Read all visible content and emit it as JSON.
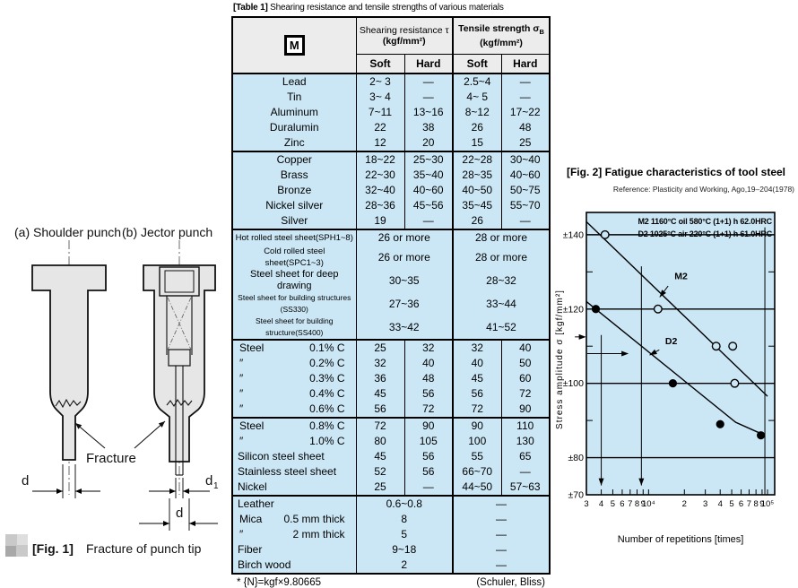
{
  "colors": {
    "table_cell_bg": "#cbe7f5",
    "table_header_bg": "#ececec",
    "chart_bg": "#cbe7f5",
    "ink": "#000000"
  },
  "fig1": {
    "label_a": "(a) Shoulder punch",
    "label_b": "(b) Jector punch",
    "fracture": "Fracture",
    "dim_d_left": "d",
    "dim_d1_base": "d",
    "dim_d1_sub": "1",
    "dim_d_right": "d",
    "caption_tag": "[Fig. 1]",
    "caption_text": "Fracture of punch tip"
  },
  "table": {
    "title_tag": "[Table 1]",
    "title_text": "Shearing resistance and tensile strengths of various materials",
    "header": {
      "material_icon": "M",
      "shear_label": "Shearing resistance τ",
      "shear_unit": "(kgf/mm²)",
      "tensile_label": "Tensile strength σ",
      "tensile_sub": "B",
      "tensile_unit": "(kgf/mm²)",
      "soft": "Soft",
      "hard": "Hard"
    },
    "groups": [
      {
        "align": "center",
        "merged": false,
        "rows": [
          {
            "name": "Lead",
            "values": [
              "2~ 3",
              "—",
              "2.5~4",
              "—"
            ]
          },
          {
            "name": "Tin",
            "values": [
              "3~ 4",
              "—",
              "4~ 5",
              "—"
            ]
          },
          {
            "name": "Aluminum",
            "values": [
              "7~11",
              "13~16",
              "8~12",
              "17~22"
            ]
          },
          {
            "name": "Duralumin",
            "values": [
              "22",
              "38",
              "26",
              "48"
            ]
          },
          {
            "name": "Zinc",
            "values": [
              "12",
              "20",
              "15",
              "25"
            ]
          }
        ]
      },
      {
        "align": "center",
        "merged": false,
        "rows": [
          {
            "name": "Copper",
            "values": [
              "18~22",
              "25~30",
              "22~28",
              "30~40"
            ]
          },
          {
            "name": "Brass",
            "values": [
              "22~30",
              "35~40",
              "28~35",
              "40~60"
            ]
          },
          {
            "name": "Bronze",
            "values": [
              "32~40",
              "40~60",
              "40~50",
              "50~75"
            ]
          },
          {
            "name": "Nickel silver",
            "values": [
              "28~36",
              "45~56",
              "35~45",
              "55~70"
            ]
          },
          {
            "name": "Silver",
            "values": [
              "19",
              "—",
              "26",
              "—"
            ]
          }
        ]
      },
      {
        "align": "center",
        "merged": true,
        "rows": [
          {
            "name": "Hot rolled steel sheet(SPH1~8)",
            "fs": 9.5,
            "values": [
              "26 or more",
              "28 or more"
            ]
          },
          {
            "name": "Cold rolled steel sheet(SPC1~3)",
            "fs": 9.5,
            "values": [
              "26 or more",
              "28 or more"
            ]
          },
          {
            "name": "Steel sheet for deep drawing",
            "fs": 11,
            "values": [
              "30~35",
              "28~32"
            ]
          },
          {
            "name": "Steel sheet for building structures (SS330)",
            "fs": 8.5,
            "values": [
              "27~36",
              "33~44"
            ]
          },
          {
            "name": "Steel sheet for building structure(SS400)",
            "fs": 8.5,
            "values": [
              "33~42",
              "41~52"
            ]
          }
        ]
      },
      {
        "align": "left",
        "merged": false,
        "rows": [
          {
            "name": "Steel",
            "sub": "0.1% C",
            "values": [
              "25",
              "32",
              "32",
              "40"
            ]
          },
          {
            "name": "″",
            "sub": "0.2% C",
            "values": [
              "32",
              "40",
              "40",
              "50"
            ]
          },
          {
            "name": "″",
            "sub": "0.3% C",
            "values": [
              "36",
              "48",
              "45",
              "60"
            ]
          },
          {
            "name": "″",
            "sub": "0.4% C",
            "values": [
              "45",
              "56",
              "56",
              "72"
            ]
          },
          {
            "name": "″",
            "sub": "0.6% C",
            "values": [
              "56",
              "72",
              "72",
              "90"
            ]
          }
        ]
      },
      {
        "align": "left",
        "merged": false,
        "rows": [
          {
            "name": "Steel",
            "sub": "0.8% C",
            "values": [
              "72",
              "90",
              "90",
              "110"
            ]
          },
          {
            "name": "″",
            "sub": "1.0% C",
            "values": [
              "80",
              "105",
              "100",
              "130"
            ]
          },
          {
            "name": "Silicon steel sheet",
            "values": [
              "45",
              "56",
              "55",
              "65"
            ]
          },
          {
            "name": "Stainless steel sheet",
            "values": [
              "52",
              "56",
              "66~70",
              "—"
            ]
          },
          {
            "name": "Nickel",
            "values": [
              "25",
              "—",
              "44~50",
              "57~63"
            ]
          }
        ]
      },
      {
        "align": "left",
        "merged": true,
        "rows": [
          {
            "name": "Leather",
            "values": [
              "0.6~0.8",
              "—"
            ]
          },
          {
            "name": "Mica",
            "sub": "0.5 mm thick",
            "values": [
              "8",
              "—"
            ]
          },
          {
            "name": "″",
            "sub": "2 mm thick",
            "values": [
              "5",
              "—"
            ]
          },
          {
            "name": "Fiber",
            "values": [
              "9~18",
              "—"
            ]
          },
          {
            "name": "Birch wood",
            "values": [
              "2",
              "—"
            ]
          }
        ]
      }
    ],
    "note": "* {N}=kgf×9.80665",
    "source": "(Schuler, Bliss)"
  },
  "chart_data": {
    "type": "scatter",
    "title_tag": "[Fig. 2]",
    "title_text": "Fatigue characteristics of tool steel",
    "reference": "Reference: Plasticity and Working, Ago,19–204(1978)",
    "xlabel": "Number of repetitions [times]",
    "ylabel": "Stress amplitude σ [kgf/mm²]",
    "x_scale": "log",
    "xlim": [
      3000,
      112000
    ],
    "ylim": [
      70,
      146
    ],
    "grid": "horizontal-major",
    "legend_position": "top-right-inside",
    "legend": [
      "M2 1160°C oil 580°C (1+1) h 62.0HRC",
      "D2 1025°C air 220°C (1+1) h 61.0HRC"
    ],
    "x_ticks": [
      {
        "v": 3000,
        "l": "3"
      },
      {
        "v": 4000,
        "l": "4"
      },
      {
        "v": 5000,
        "l": "5"
      },
      {
        "v": 6000,
        "l": "6"
      },
      {
        "v": 7000,
        "l": "7"
      },
      {
        "v": 8000,
        "l": "8"
      },
      {
        "v": 9000,
        "l": "9"
      },
      {
        "v": 10000,
        "l": "10⁴"
      },
      {
        "v": 20000,
        "l": "2"
      },
      {
        "v": 30000,
        "l": "3"
      },
      {
        "v": 40000,
        "l": "4"
      },
      {
        "v": 50000,
        "l": "5"
      },
      {
        "v": 60000,
        "l": "6"
      },
      {
        "v": 70000,
        "l": "7"
      },
      {
        "v": 80000,
        "l": "8"
      },
      {
        "v": 90000,
        "l": "9"
      },
      {
        "v": 100000,
        "l": "10⁵"
      }
    ],
    "y_major": [
      {
        "v": 140,
        "label": "±140"
      },
      {
        "v": 120,
        "label": "±120"
      },
      {
        "v": 100,
        "label": "±100"
      },
      {
        "v": 80,
        "label": "±80"
      },
      {
        "v": 70,
        "label": "±70"
      }
    ],
    "y_minor": [
      130,
      110,
      90
    ],
    "series": [
      {
        "name": "M2",
        "marker": "open",
        "points": [
          [
            4300,
            140
          ],
          [
            12000,
            120
          ],
          [
            37000,
            110
          ],
          [
            51000,
            110
          ],
          [
            53000,
            100
          ]
        ],
        "line": [
          [
            3000,
            143.5
          ],
          [
            100000,
            96.5
          ]
        ],
        "label_pos": [
          16500,
          128
        ],
        "label_arrow": [
          [
            14600,
            126.2
          ],
          [
            12400,
            123.2
          ]
        ]
      },
      {
        "name": "D2",
        "marker": "filled",
        "points": [
          [
            3600,
            120
          ],
          [
            16000,
            100
          ],
          [
            40000,
            89
          ],
          [
            88000,
            86
          ]
        ],
        "line": [
          [
            3000,
            122
          ],
          [
            54000,
            89.5
          ],
          [
            95000,
            86
          ]
        ],
        "label_pos": [
          13800,
          110.5
        ],
        "label_arrow": [
          [
            12300,
            109
          ],
          [
            10200,
            107.6
          ]
        ]
      }
    ],
    "annotations": {
      "vlines": [
        {
          "x": 4000,
          "top": 113,
          "bottom": 72.5,
          "arrow": true
        },
        {
          "x": 8700,
          "top": 131.5,
          "bottom": 72.5,
          "arrow": true
        },
        {
          "x": 95000,
          "top": 142,
          "bottom": 70,
          "arrow": false
        }
      ],
      "harrows": [
        {
          "x1": 2400,
          "x2": 2980,
          "y": 112.5
        },
        {
          "x1": 3050,
          "x2": 6800,
          "y": 108
        }
      ]
    }
  }
}
